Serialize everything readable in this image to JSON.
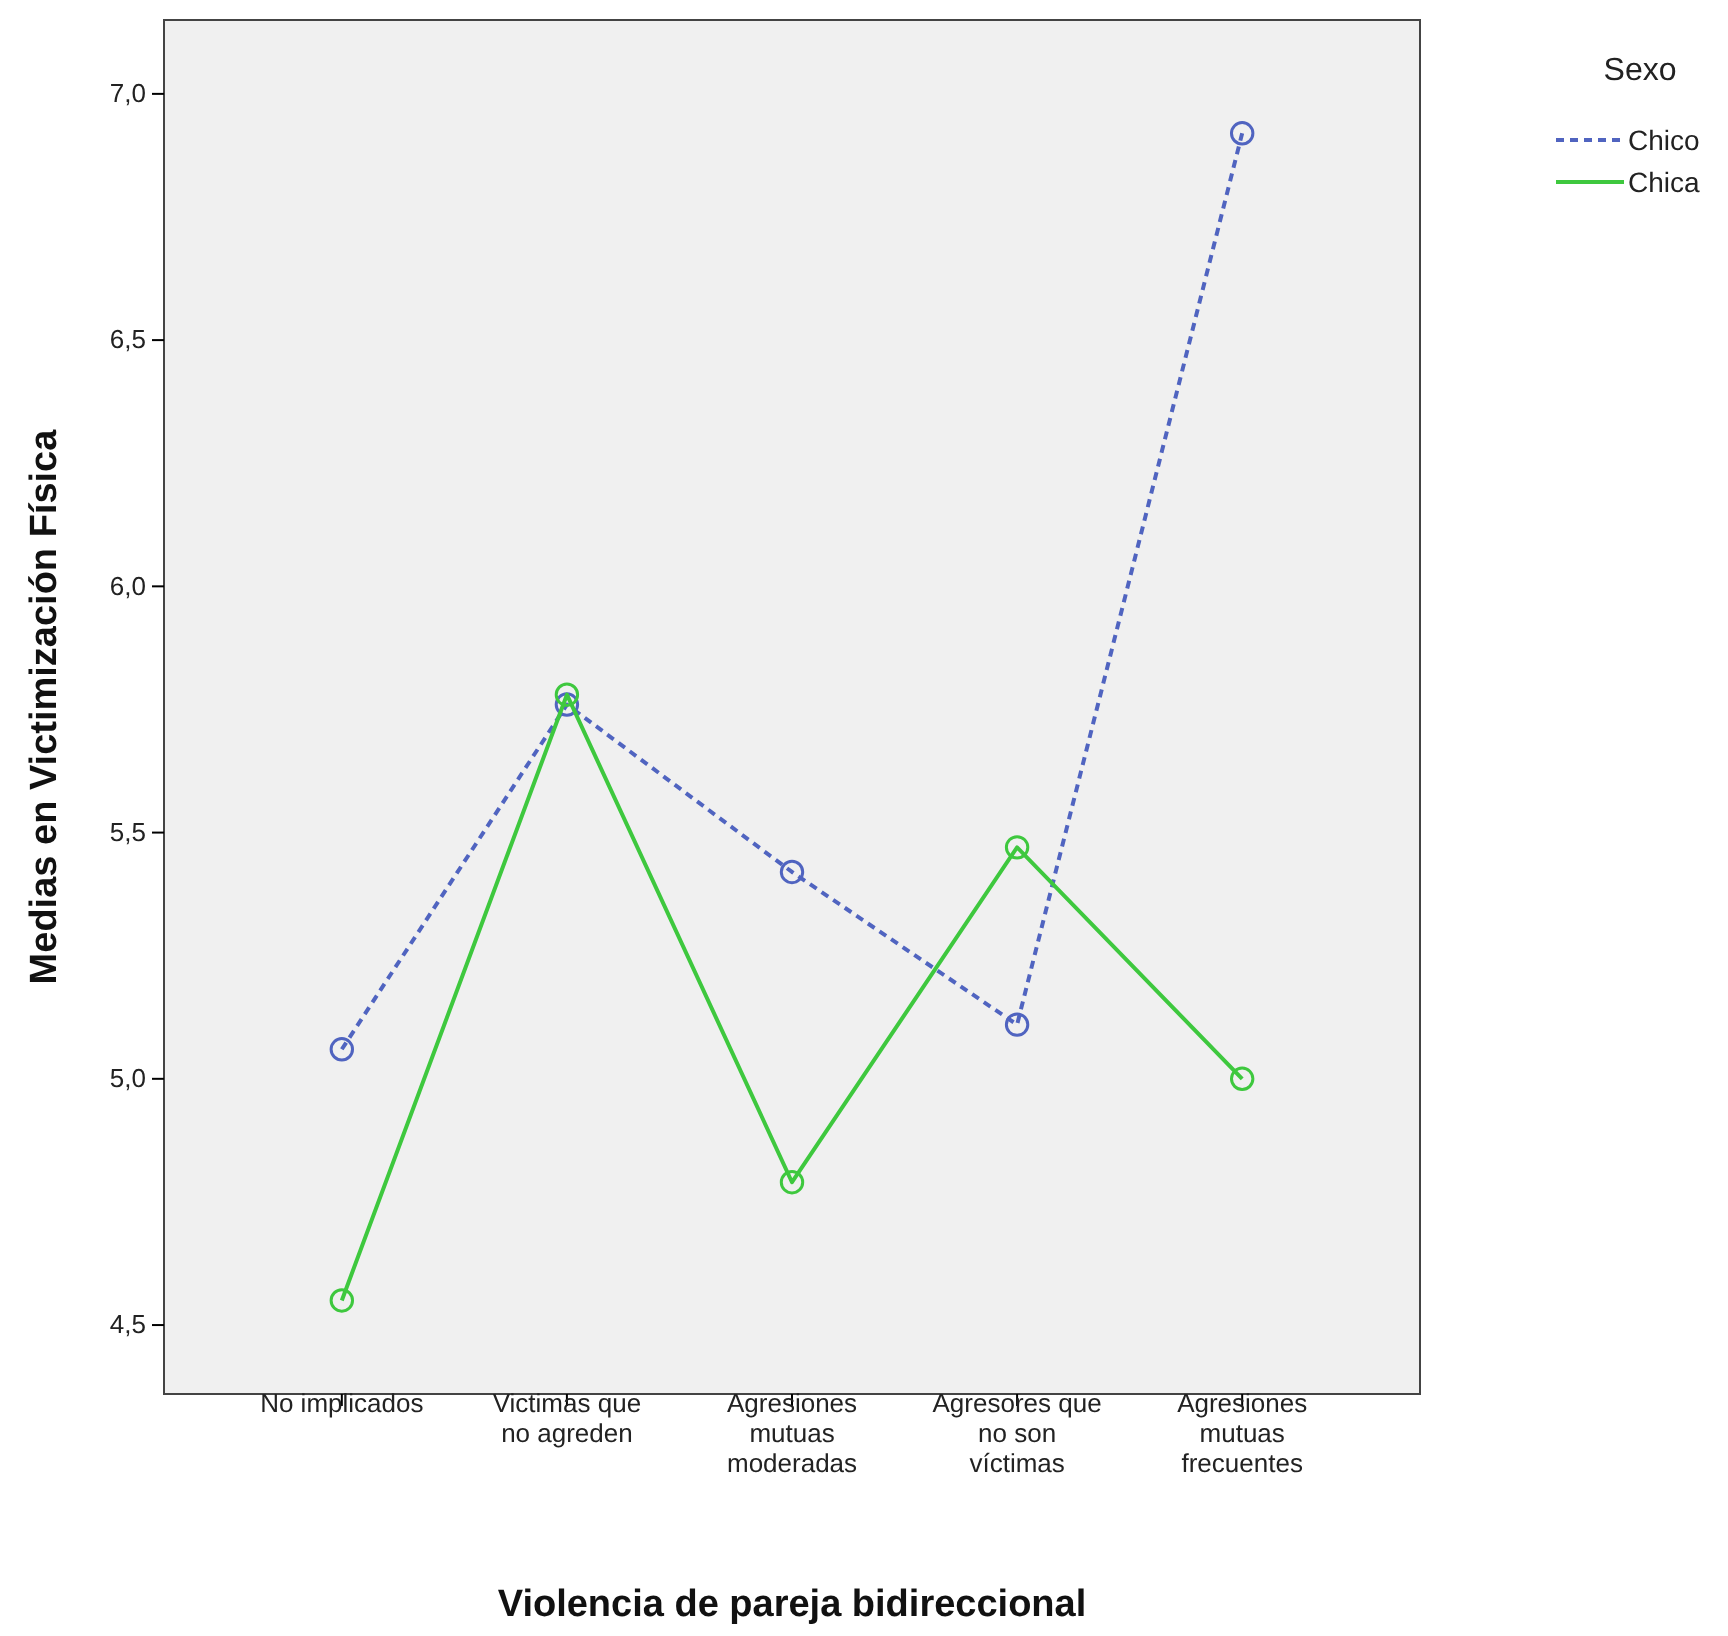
{
  "chart_data": {
    "type": "line",
    "xlabel": "Violencia de pareja bidireccional",
    "ylabel": "Medias en Victimización Física",
    "legend_title": "Sexo",
    "legend": "top right",
    "marker": "circle",
    "grid": false,
    "categories": [
      "No implicados",
      "Victimas que no agreden",
      "Agresiones mutuas moderadas",
      "Agresores que no son víctimas",
      "Agresiones mutuas frecuentes"
    ],
    "ylim": [
      4.36,
      7.15
    ],
    "yticks": [
      {
        "value": 4.5,
        "label": "4,5"
      },
      {
        "value": 5.0,
        "label": "5,0"
      },
      {
        "value": 5.5,
        "label": "5,5"
      },
      {
        "value": 6.0,
        "label": "6,0"
      },
      {
        "value": 6.5,
        "label": "6,5"
      },
      {
        "value": 7.0,
        "label": "7,0"
      }
    ],
    "series": [
      {
        "name": "Chico",
        "color": "#5064c0",
        "line_style": "dashed",
        "values": [
          5.06,
          5.76,
          5.42,
          5.11,
          6.92
        ]
      },
      {
        "name": "Chica",
        "color": "#3ec83e",
        "line_style": "solid",
        "values": [
          4.55,
          5.78,
          4.79,
          5.47,
          5.0
        ]
      }
    ]
  }
}
